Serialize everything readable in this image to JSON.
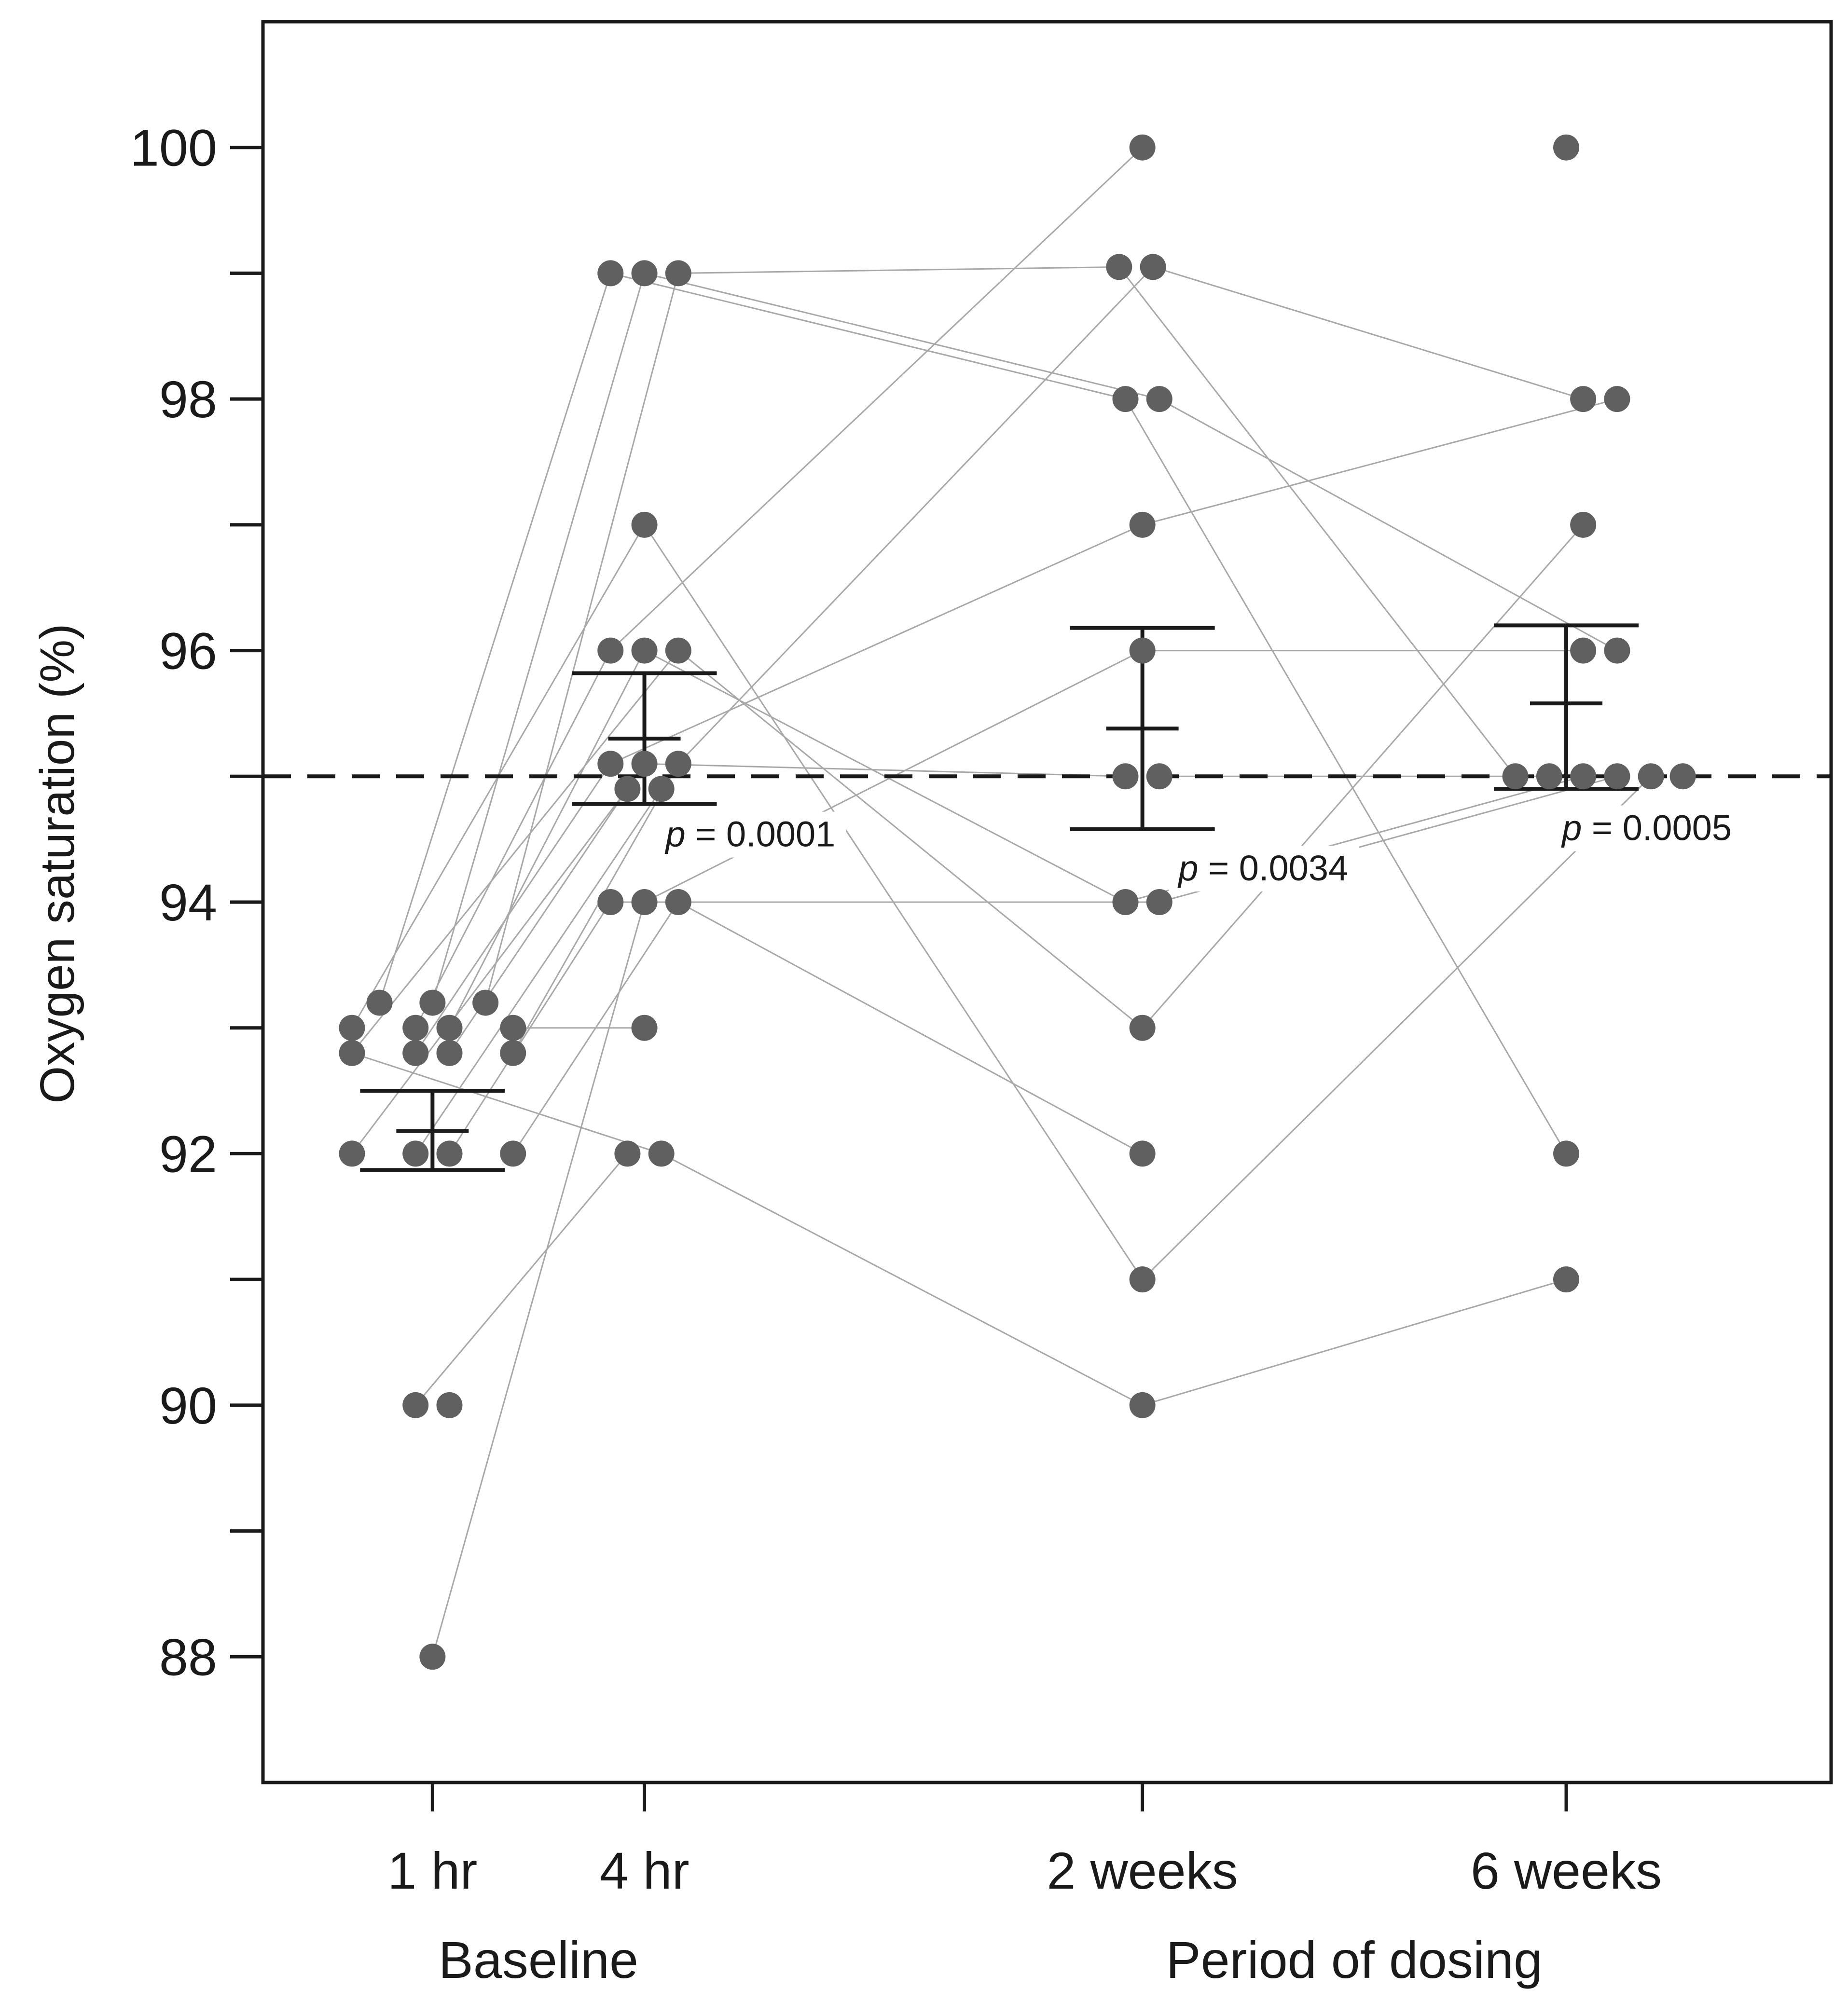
{
  "chart_data": {
    "type": "scatter",
    "ylabel": "Oxygen saturation (%)",
    "ylim": [
      87,
      101
    ],
    "yticks": [
      88,
      90,
      92,
      94,
      96,
      98,
      100
    ],
    "yminor_ticks": [
      89,
      91,
      93,
      95,
      97,
      99
    ],
    "reference_line": 95,
    "categories": [
      {
        "label": "1 hr",
        "x": 0
      },
      {
        "label": "4 hr",
        "x": 1
      },
      {
        "label": "2 weeks",
        "x": 3.35
      },
      {
        "label": "6 weeks",
        "x": 5.35
      }
    ],
    "xlim": [
      -0.8,
      6.6
    ],
    "groups": [
      {
        "label": "Baseline",
        "x": 0.5
      },
      {
        "label": "Period of dosing",
        "x": 4.35
      }
    ],
    "points": [
      [
        0,
        -0.25,
        93.2
      ],
      [
        0,
        0,
        93.2
      ],
      [
        0,
        0.25,
        93.2
      ],
      [
        0,
        -0.38,
        93.0
      ],
      [
        0,
        -0.08,
        93.0
      ],
      [
        0,
        0.08,
        93.0
      ],
      [
        0,
        0.38,
        93.0
      ],
      [
        0,
        -0.38,
        92.8
      ],
      [
        0,
        -0.08,
        92.8
      ],
      [
        0,
        0.08,
        92.8
      ],
      [
        0,
        0.38,
        92.8
      ],
      [
        0,
        -0.38,
        92.0
      ],
      [
        0,
        -0.08,
        92.0
      ],
      [
        0,
        0.08,
        92.0
      ],
      [
        0,
        0.38,
        92.0
      ],
      [
        0,
        -0.08,
        90.0
      ],
      [
        0,
        0.08,
        90.0
      ],
      [
        0,
        0,
        88.0
      ],
      [
        1,
        -0.16,
        99.0
      ],
      [
        1,
        0,
        99.0
      ],
      [
        1,
        0.16,
        99.0
      ],
      [
        1,
        0,
        97.0
      ],
      [
        1,
        -0.16,
        96.0
      ],
      [
        1,
        0,
        96.0
      ],
      [
        1,
        0.16,
        96.0
      ],
      [
        1,
        -0.16,
        95.1
      ],
      [
        1,
        0,
        95.1
      ],
      [
        1,
        0.16,
        95.1
      ],
      [
        1,
        -0.08,
        94.9
      ],
      [
        1,
        0.08,
        94.9
      ],
      [
        1,
        -0.16,
        94.0
      ],
      [
        1,
        0,
        94.0
      ],
      [
        1,
        0.16,
        94.0
      ],
      [
        1,
        0,
        93.0
      ],
      [
        1,
        -0.08,
        92.0
      ],
      [
        1,
        0.08,
        92.0
      ],
      [
        3.35,
        0,
        100.0
      ],
      [
        3.35,
        -0.11,
        99.05
      ],
      [
        3.35,
        0.05,
        99.05
      ],
      [
        3.35,
        -0.08,
        98.0
      ],
      [
        3.35,
        0.08,
        98.0
      ],
      [
        3.35,
        0,
        97.0
      ],
      [
        3.35,
        0,
        96.0
      ],
      [
        3.35,
        -0.08,
        95.0
      ],
      [
        3.35,
        0.08,
        95.0
      ],
      [
        3.35,
        -0.08,
        94.0
      ],
      [
        3.35,
        0.08,
        94.0
      ],
      [
        3.35,
        0,
        93.0
      ],
      [
        3.35,
        0,
        92.0
      ],
      [
        3.35,
        0,
        91.0
      ],
      [
        3.35,
        0,
        90.0
      ],
      [
        5.35,
        0,
        100.0
      ],
      [
        5.35,
        0.08,
        98.0
      ],
      [
        5.35,
        0.24,
        98.0
      ],
      [
        5.35,
        0.08,
        97.0
      ],
      [
        5.35,
        0.08,
        96.0
      ],
      [
        5.35,
        0.24,
        96.0
      ],
      [
        5.35,
        -0.24,
        95.0
      ],
      [
        5.35,
        -0.08,
        95.0
      ],
      [
        5.35,
        0.08,
        95.0
      ],
      [
        5.35,
        0.24,
        95.0
      ],
      [
        5.35,
        0.4,
        95.0
      ],
      [
        5.35,
        0.55,
        95.0
      ],
      [
        5.35,
        0,
        92.0
      ],
      [
        5.35,
        0,
        91.0
      ]
    ],
    "connections": [
      [
        [
          0,
          -0.25,
          93.2
        ],
        [
          1,
          -0.16,
          99.0
        ]
      ],
      [
        [
          0,
          0,
          93.2
        ],
        [
          1,
          0,
          99.0
        ]
      ],
      [
        [
          0,
          0.25,
          93.2
        ],
        [
          1,
          0.16,
          99.0
        ]
      ],
      [
        [
          0,
          -0.38,
          93.0
        ],
        [
          1,
          0,
          97.0
        ]
      ],
      [
        [
          0,
          -0.08,
          93.0
        ],
        [
          1,
          -0.16,
          96.0
        ]
      ],
      [
        [
          0,
          0.08,
          93.0
        ],
        [
          1,
          0,
          96.0
        ]
      ],
      [
        [
          0,
          0.38,
          93.0
        ],
        [
          1,
          0,
          93.0
        ]
      ],
      [
        [
          0,
          -0.38,
          92.8
        ],
        [
          1,
          0.16,
          96.0
        ]
      ],
      [
        [
          0,
          -0.08,
          92.8
        ],
        [
          1,
          -0.16,
          95.1
        ]
      ],
      [
        [
          0,
          0.08,
          92.8
        ],
        [
          1,
          0,
          95.1
        ]
      ],
      [
        [
          0,
          0.38,
          92.8
        ],
        [
          1,
          0.16,
          95.1
        ]
      ],
      [
        [
          0,
          -0.38,
          92.0
        ],
        [
          1,
          -0.08,
          94.9
        ]
      ],
      [
        [
          0,
          -0.08,
          92.0
        ],
        [
          1,
          0.08,
          94.9
        ]
      ],
      [
        [
          0,
          0.08,
          92.0
        ],
        [
          1,
          -0.16,
          94.0
        ]
      ],
      [
        [
          0,
          0.38,
          92.0
        ],
        [
          1,
          0.16,
          94.0
        ]
      ],
      [
        [
          0,
          -0.08,
          90.0
        ],
        [
          1,
          -0.08,
          92.0
        ]
      ],
      [
        [
          0,
          0,
          88.0
        ],
        [
          1,
          0,
          94.0
        ]
      ],
      [
        [
          0,
          -0.38,
          92.8
        ],
        [
          1,
          0.08,
          92.0
        ]
      ],
      [
        [
          1,
          0.16,
          99.0
        ],
        [
          3.35,
          -0.11,
          99.05
        ]
      ],
      [
        [
          1,
          -0.16,
          99.0
        ],
        [
          3.35,
          -0.08,
          98.0
        ]
      ],
      [
        [
          1,
          0,
          99.0
        ],
        [
          3.35,
          0.08,
          98.0
        ]
      ],
      [
        [
          1,
          -0.16,
          96.0
        ],
        [
          3.35,
          0,
          100.0
        ]
      ],
      [
        [
          1,
          0,
          96.0
        ],
        [
          3.35,
          -0.08,
          94.0
        ]
      ],
      [
        [
          1,
          0.16,
          96.0
        ],
        [
          3.35,
          0,
          93.0
        ]
      ],
      [
        [
          1,
          0,
          97.0
        ],
        [
          3.35,
          0,
          91.0
        ]
      ],
      [
        [
          1,
          0.16,
          95.1
        ],
        [
          3.35,
          0.05,
          99.05
        ]
      ],
      [
        [
          1,
          -0.16,
          95.1
        ],
        [
          3.35,
          0,
          97.0
        ]
      ],
      [
        [
          1,
          0,
          95.1
        ],
        [
          3.35,
          -0.08,
          95.0
        ]
      ],
      [
        [
          1,
          0.16,
          94.0
        ],
        [
          3.35,
          0,
          92.0
        ]
      ],
      [
        [
          1,
          0.08,
          92.0
        ],
        [
          3.35,
          0,
          90.0
        ]
      ],
      [
        [
          1,
          0,
          94.0
        ],
        [
          3.35,
          0,
          96.0
        ]
      ],
      [
        [
          1,
          -0.16,
          94.0
        ],
        [
          3.35,
          0.08,
          94.0
        ]
      ],
      [
        [
          3.35,
          0.05,
          99.05
        ],
        [
          5.35,
          0.08,
          98.0
        ]
      ],
      [
        [
          3.35,
          0,
          97.0
        ],
        [
          5.35,
          0.24,
          98.0
        ]
      ],
      [
        [
          3.35,
          -0.11,
          99.05
        ],
        [
          5.35,
          -0.24,
          95.0
        ]
      ],
      [
        [
          3.35,
          -0.08,
          98.0
        ],
        [
          5.35,
          0,
          92.0
        ]
      ],
      [
        [
          3.35,
          0.08,
          98.0
        ],
        [
          5.35,
          0.24,
          96.0
        ]
      ],
      [
        [
          3.35,
          0,
          96.0
        ],
        [
          5.35,
          0.08,
          96.0
        ]
      ],
      [
        [
          3.35,
          0.08,
          95.0
        ],
        [
          5.35,
          -0.08,
          95.0
        ]
      ],
      [
        [
          3.35,
          -0.08,
          94.0
        ],
        [
          5.35,
          0.08,
          95.0
        ]
      ],
      [
        [
          3.35,
          0.08,
          94.0
        ],
        [
          5.35,
          0.24,
          95.0
        ]
      ],
      [
        [
          3.35,
          0,
          93.0
        ],
        [
          5.35,
          0.08,
          97.0
        ]
      ],
      [
        [
          3.35,
          0,
          91.0
        ],
        [
          5.35,
          0.4,
          95.0
        ]
      ],
      [
        [
          3.35,
          0,
          90.0
        ],
        [
          5.35,
          0,
          91.0
        ]
      ]
    ],
    "summaries": [
      {
        "x": 0,
        "mean": 92.18,
        "lower": 91.87,
        "upper": 92.5
      },
      {
        "x": 1,
        "mean": 95.3,
        "lower": 94.78,
        "upper": 95.82
      },
      {
        "x": 3.35,
        "mean": 95.38,
        "lower": 94.58,
        "upper": 96.18
      },
      {
        "x": 5.35,
        "mean": 95.58,
        "lower": 94.9,
        "upper": 96.2
      }
    ],
    "annotations": [
      {
        "italic": "p",
        "text": " = 0.0001",
        "x": 1.1,
        "y": 94.55
      },
      {
        "italic": "p",
        "text": " = 0.0034",
        "x": 3.52,
        "y": 94.28
      },
      {
        "italic": "p",
        "text": " = 0.0005",
        "x": 5.33,
        "y": 94.6
      }
    ]
  }
}
